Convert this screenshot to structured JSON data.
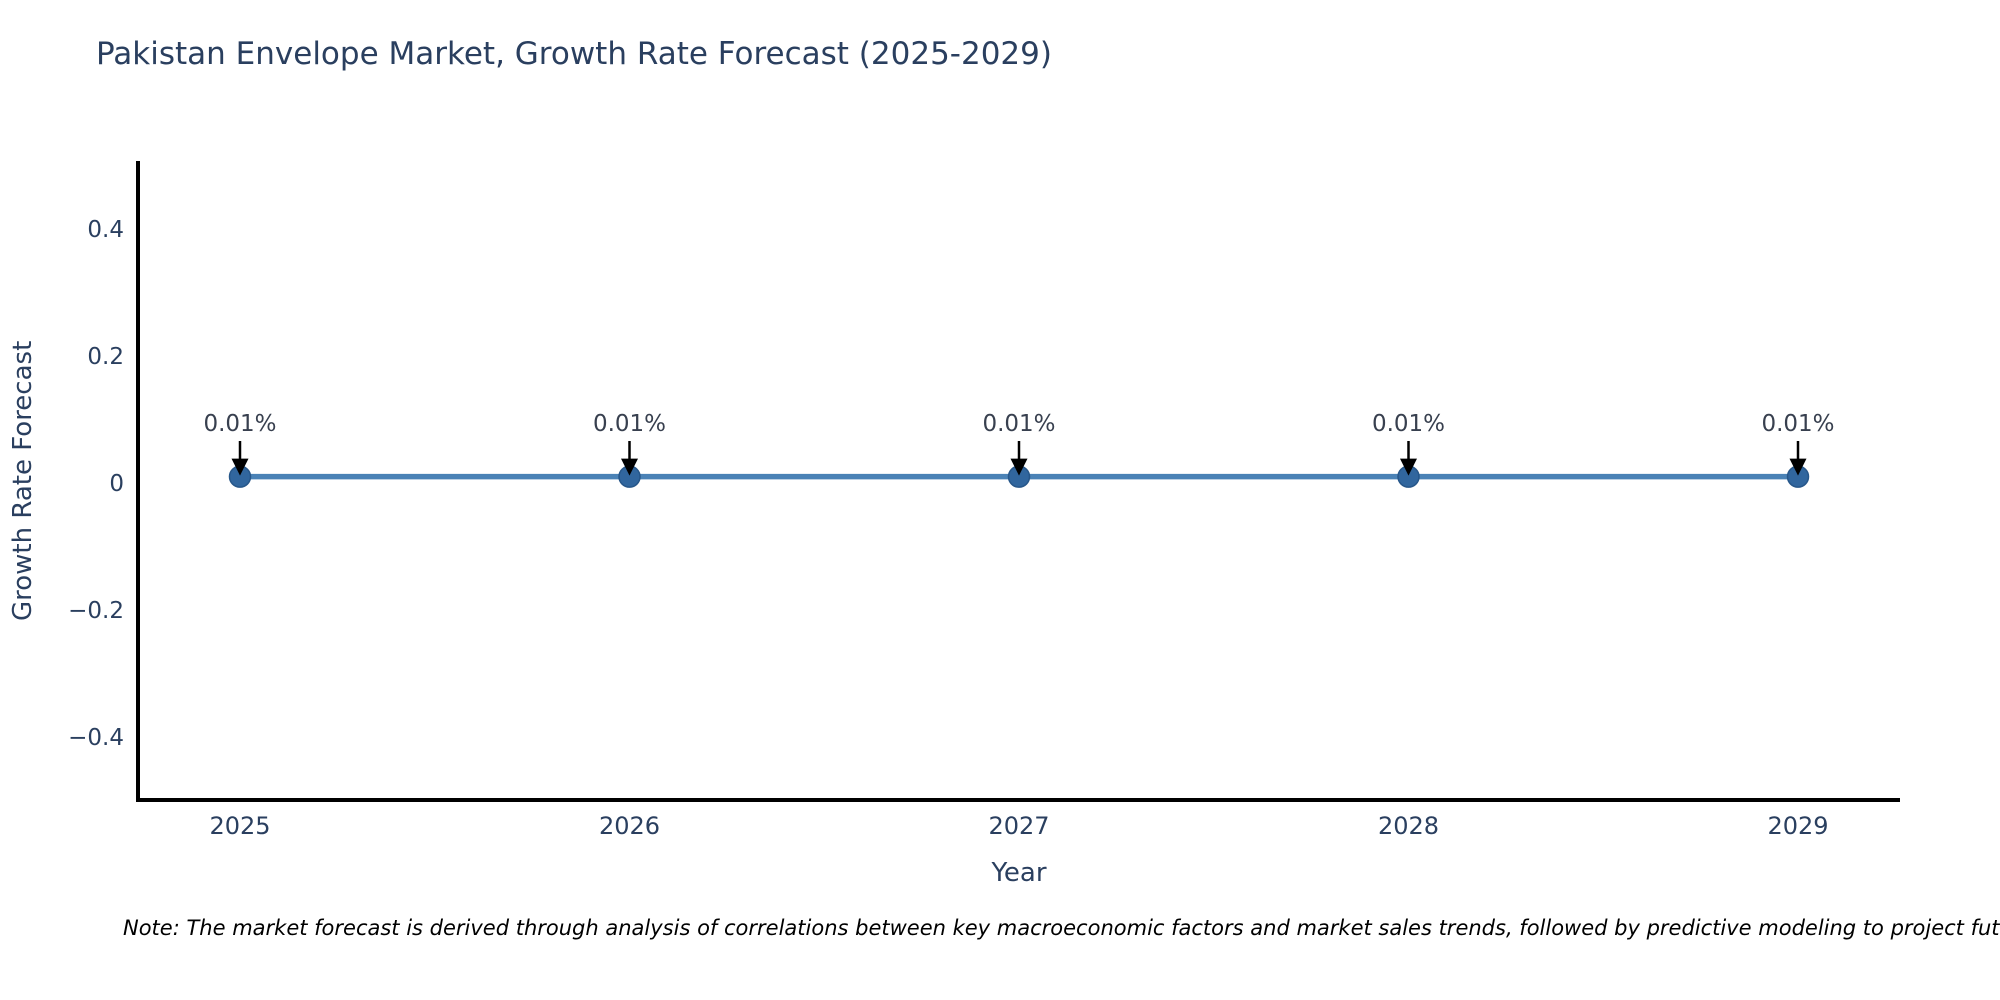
{
  "note": "Note: The market forecast is derived through analysis of correlations between key macroeconomic factors and market sales trends, followed by predictive modeling to project future sa",
  "chart_data": {
    "type": "line",
    "title": "Pakistan Envelope Market, Growth Rate Forecast (2025-2029)",
    "xlabel": "Year",
    "ylabel": "Growth Rate Forecast",
    "x": [
      2025,
      2026,
      2027,
      2028,
      2029
    ],
    "values": [
      0.01,
      0.01,
      0.01,
      0.01,
      0.01
    ],
    "point_labels": [
      "0.01%",
      "0.01%",
      "0.01%",
      "0.01%",
      "0.01%"
    ],
    "ylim": [
      -0.5,
      0.5
    ],
    "yticks": [
      0.4,
      0.2,
      0,
      -0.2,
      -0.4
    ],
    "grid": false,
    "legend": "none",
    "annotation_style": "label-with-down-arrow",
    "colors": {
      "line": "#4a82b6",
      "marker": "#31669e",
      "marker_edge": "#27578a",
      "axis": "#000000",
      "tick_text": "#2a3f5f",
      "annotation_text": "#38404f",
      "arrow": "#000000"
    }
  }
}
